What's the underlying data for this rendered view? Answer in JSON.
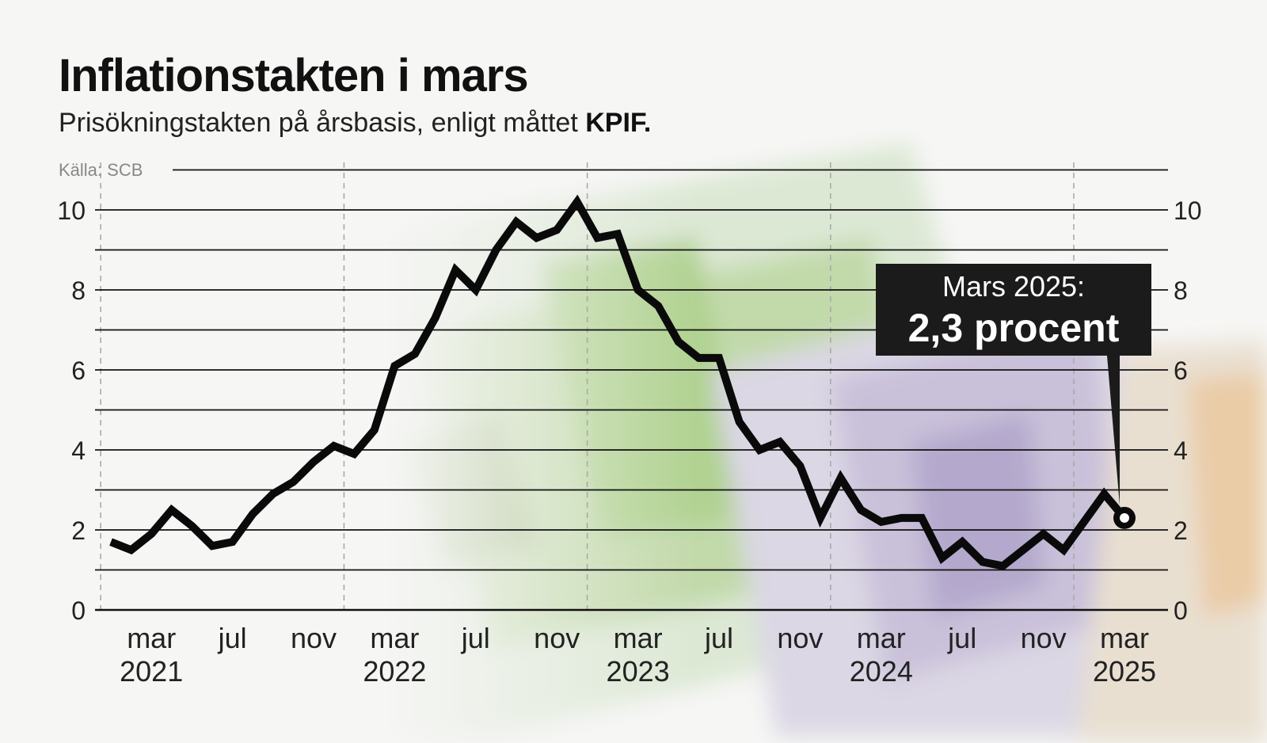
{
  "header": {
    "title": "Inflationstakten i mars",
    "subtitle_prefix": "Prisökningstakten på årsbasis, enligt måttet ",
    "subtitle_bold": "KPIF.",
    "source": "Källa: SCB"
  },
  "callout": {
    "line1": "Mars 2025:",
    "line2": "2,3 procent"
  },
  "colors": {
    "line": "#0a0a0a",
    "grid": "#111111",
    "callout_bg": "#1b1b1b",
    "text": "#111111",
    "source_text": "#888888"
  },
  "chart_data": {
    "type": "line",
    "title": "Inflationstakten i mars",
    "subtitle": "Prisökningstakten på årsbasis, enligt måttet KPIF.",
    "ylim": [
      0,
      10
    ],
    "yticks": [
      0,
      2,
      4,
      6,
      8,
      10
    ],
    "y_gridlines": [
      0,
      1,
      2,
      3,
      4,
      5,
      6,
      7,
      8,
      9,
      10,
      11
    ],
    "x_tick_labels": [
      {
        "month": "mar",
        "year": "2021",
        "index": 2
      },
      {
        "month": "jul",
        "year": "",
        "index": 6
      },
      {
        "month": "nov",
        "year": "",
        "index": 10
      },
      {
        "month": "mar",
        "year": "2022",
        "index": 14
      },
      {
        "month": "jul",
        "year": "",
        "index": 18
      },
      {
        "month": "nov",
        "year": "",
        "index": 22
      },
      {
        "month": "mar",
        "year": "2023",
        "index": 26
      },
      {
        "month": "jul",
        "year": "",
        "index": 30
      },
      {
        "month": "nov",
        "year": "",
        "index": 34
      },
      {
        "month": "mar",
        "year": "2024",
        "index": 38
      },
      {
        "month": "jul",
        "year": "",
        "index": 42
      },
      {
        "month": "nov",
        "year": "",
        "index": 46
      },
      {
        "month": "mar",
        "year": "2025",
        "index": 50
      }
    ],
    "year_boundaries": [
      -0.5,
      11.5,
      23.5,
      35.5,
      47.5
    ],
    "x": [
      "2021-01",
      "2021-02",
      "2021-03",
      "2021-04",
      "2021-05",
      "2021-06",
      "2021-07",
      "2021-08",
      "2021-09",
      "2021-10",
      "2021-11",
      "2021-12",
      "2022-01",
      "2022-02",
      "2022-03",
      "2022-04",
      "2022-05",
      "2022-06",
      "2022-07",
      "2022-08",
      "2022-09",
      "2022-10",
      "2022-11",
      "2022-12",
      "2023-01",
      "2023-02",
      "2023-03",
      "2023-04",
      "2023-05",
      "2023-06",
      "2023-07",
      "2023-08",
      "2023-09",
      "2023-10",
      "2023-11",
      "2023-12",
      "2024-01",
      "2024-02",
      "2024-03",
      "2024-04",
      "2024-05",
      "2024-06",
      "2024-07",
      "2024-08",
      "2024-09",
      "2024-10",
      "2024-11",
      "2024-12",
      "2025-01",
      "2025-02",
      "2025-03"
    ],
    "series": [
      {
        "values": [
          1.7,
          1.5,
          1.9,
          2.5,
          2.1,
          1.6,
          1.7,
          2.4,
          2.9,
          3.2,
          3.7,
          4.1,
          3.9,
          4.5,
          6.1,
          6.4,
          7.3,
          8.5,
          8.0,
          9.0,
          9.7,
          9.3,
          9.5,
          10.2,
          9.3,
          9.4,
          8.0,
          7.6,
          6.7,
          6.3,
          6.3,
          4.7,
          4.0,
          4.2,
          3.6,
          2.3,
          3.3,
          2.5,
          2.2,
          2.3,
          2.3,
          1.3,
          1.7,
          1.2,
          1.1,
          1.5,
          1.9,
          1.5,
          2.2,
          2.9,
          2.3
        ]
      }
    ]
  }
}
